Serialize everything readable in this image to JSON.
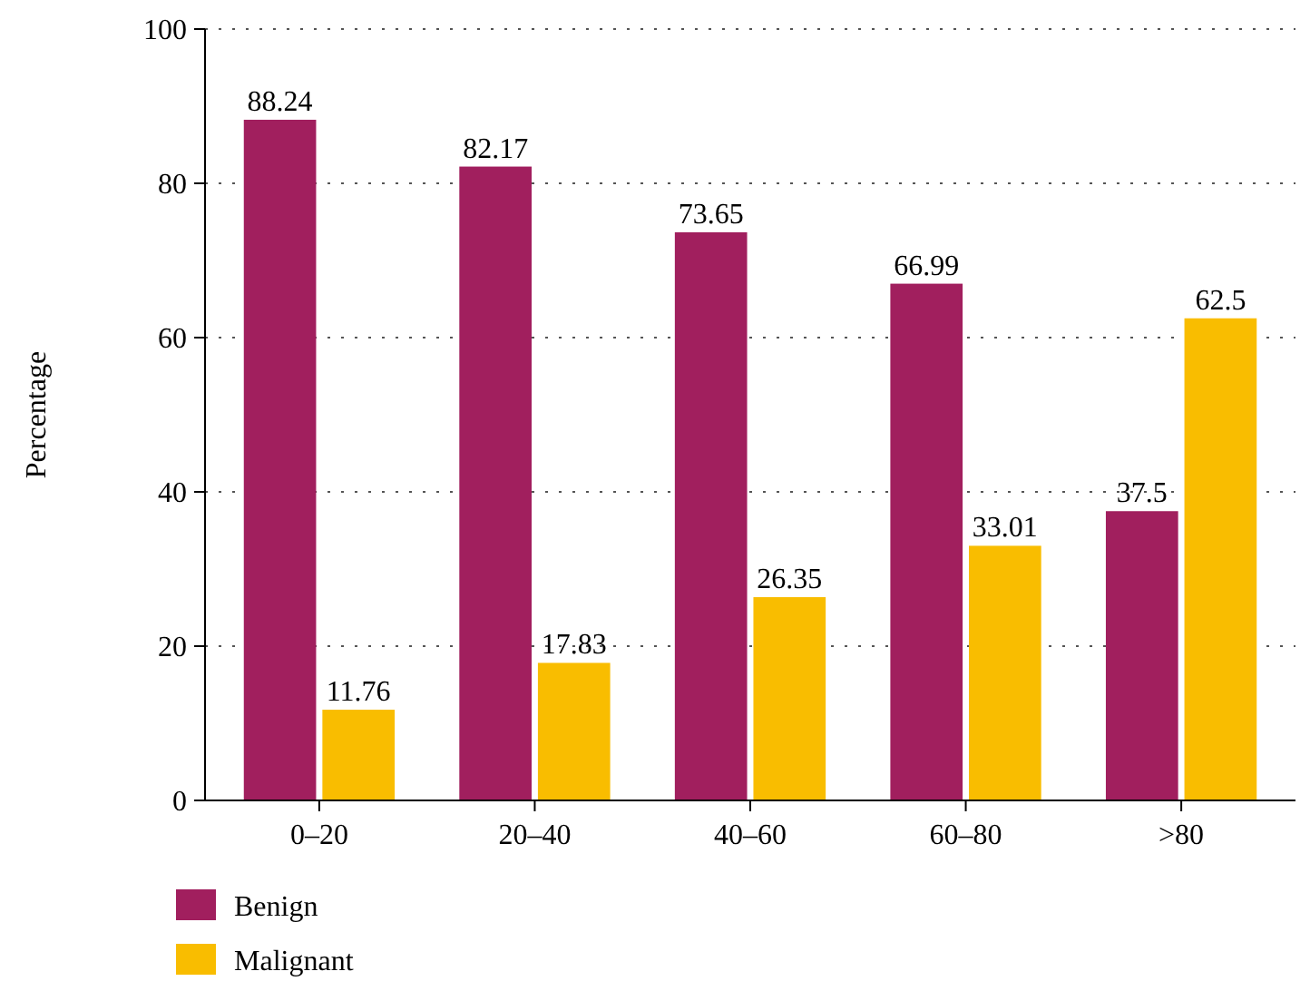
{
  "chart_data": {
    "type": "bar",
    "ylabel": "Percentage",
    "categories": [
      "0–20",
      "20–40",
      "40–60",
      "60–80",
      ">80"
    ],
    "series": [
      {
        "name": "Benign",
        "color": "#a11f5e",
        "values": [
          88.24,
          82.17,
          73.65,
          66.99,
          37.5
        ]
      },
      {
        "name": "Malignant",
        "color": "#f9bd00",
        "values": [
          11.76,
          17.83,
          26.35,
          33.01,
          62.5
        ]
      }
    ],
    "ylim": [
      0,
      100
    ],
    "yticks": [
      0,
      20,
      40,
      60,
      80,
      100
    ],
    "grid": "y",
    "legend": "bottom left",
    "data_labels": true
  }
}
